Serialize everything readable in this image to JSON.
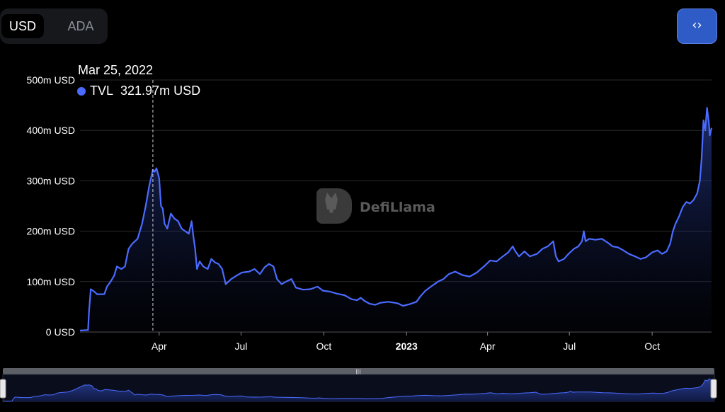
{
  "currency_toggle": {
    "options": [
      {
        "label": "USD",
        "active": true
      },
      {
        "label": "ADA",
        "active": false
      }
    ]
  },
  "embed_button": {
    "icon": "code-icon",
    "glyph": "‹›"
  },
  "watermark": {
    "text": "DefiLlama",
    "icon": "llama-logo-icon"
  },
  "tooltip": {
    "date": "Mar 25, 2022",
    "series": "TVL",
    "value": "321.97m USD",
    "color": "#4b6bff"
  },
  "colors": {
    "line": "#4b6bff",
    "grid": "#2a2a2a"
  },
  "chart_data": {
    "type": "area",
    "series": [
      {
        "name": "TVL"
      }
    ],
    "unit": "m USD",
    "ylim": [
      0,
      500
    ],
    "ytick_values": [
      0,
      100,
      200,
      300,
      400,
      500
    ],
    "yticks": [
      "0 USD",
      "100m USD",
      "200m USD",
      "300m USD",
      "400m USD",
      "500m USD"
    ],
    "xlim": [
      "2022-01-03",
      "2023-12-06"
    ],
    "xticks": [
      {
        "date": "2022-04-01",
        "label": "Apr",
        "bold": false
      },
      {
        "date": "2022-07-01",
        "label": "Jul",
        "bold": false
      },
      {
        "date": "2022-10-01",
        "label": "Oct",
        "bold": false
      },
      {
        "date": "2023-01-01",
        "label": "2023",
        "bold": true
      },
      {
        "date": "2023-04-01",
        "label": "Apr",
        "bold": false
      },
      {
        "date": "2023-07-01",
        "label": "Jul",
        "bold": false
      },
      {
        "date": "2023-10-01",
        "label": "Oct",
        "bold": false
      }
    ],
    "hover_date": "2022-03-25",
    "grid": true,
    "points": [
      [
        "2022-01-03",
        3
      ],
      [
        "2022-01-12",
        4
      ],
      [
        "2022-01-13",
        40
      ],
      [
        "2022-01-15",
        85
      ],
      [
        "2022-01-19",
        80
      ],
      [
        "2022-01-22",
        75
      ],
      [
        "2022-01-30",
        75
      ],
      [
        "2022-02-02",
        90
      ],
      [
        "2022-02-06",
        100
      ],
      [
        "2022-02-10",
        112
      ],
      [
        "2022-02-13",
        130
      ],
      [
        "2022-02-18",
        125
      ],
      [
        "2022-02-22",
        130
      ],
      [
        "2022-02-26",
        165
      ],
      [
        "2022-03-02",
        175
      ],
      [
        "2022-03-08",
        185
      ],
      [
        "2022-03-13",
        215
      ],
      [
        "2022-03-17",
        250
      ],
      [
        "2022-03-21",
        290
      ],
      [
        "2022-03-25",
        322
      ],
      [
        "2022-03-27",
        318
      ],
      [
        "2022-03-29",
        325
      ],
      [
        "2022-04-01",
        305
      ],
      [
        "2022-04-03",
        250
      ],
      [
        "2022-04-05",
        245
      ],
      [
        "2022-04-07",
        215
      ],
      [
        "2022-04-10",
        205
      ],
      [
        "2022-04-14",
        235
      ],
      [
        "2022-04-18",
        225
      ],
      [
        "2022-04-22",
        220
      ],
      [
        "2022-04-26",
        205
      ],
      [
        "2022-04-30",
        200
      ],
      [
        "2022-05-04",
        195
      ],
      [
        "2022-05-07",
        220
      ],
      [
        "2022-05-09",
        190
      ],
      [
        "2022-05-11",
        165
      ],
      [
        "2022-05-13",
        125
      ],
      [
        "2022-05-16",
        140
      ],
      [
        "2022-05-20",
        130
      ],
      [
        "2022-05-25",
        125
      ],
      [
        "2022-05-29",
        145
      ],
      [
        "2022-06-02",
        138
      ],
      [
        "2022-06-06",
        135
      ],
      [
        "2022-06-10",
        125
      ],
      [
        "2022-06-14",
        95
      ],
      [
        "2022-06-20",
        105
      ],
      [
        "2022-06-26",
        112
      ],
      [
        "2022-07-02",
        118
      ],
      [
        "2022-07-10",
        120
      ],
      [
        "2022-07-16",
        125
      ],
      [
        "2022-07-22",
        115
      ],
      [
        "2022-07-27",
        128
      ],
      [
        "2022-08-01",
        135
      ],
      [
        "2022-08-06",
        130
      ],
      [
        "2022-08-10",
        105
      ],
      [
        "2022-08-15",
        95
      ],
      [
        "2022-08-20",
        100
      ],
      [
        "2022-08-26",
        105
      ],
      [
        "2022-08-31",
        88
      ],
      [
        "2022-09-08",
        84
      ],
      [
        "2022-09-16",
        85
      ],
      [
        "2022-09-24",
        90
      ],
      [
        "2022-09-30",
        82
      ],
      [
        "2022-10-08",
        80
      ],
      [
        "2022-10-16",
        76
      ],
      [
        "2022-10-24",
        73
      ],
      [
        "2022-11-01",
        65
      ],
      [
        "2022-11-07",
        63
      ],
      [
        "2022-11-11",
        68
      ],
      [
        "2022-11-15",
        62
      ],
      [
        "2022-11-21",
        56
      ],
      [
        "2022-11-27",
        54
      ],
      [
        "2022-12-03",
        58
      ],
      [
        "2022-12-12",
        60
      ],
      [
        "2022-12-22",
        57
      ],
      [
        "2022-12-28",
        52
      ],
      [
        "2023-01-04",
        55
      ],
      [
        "2023-01-12",
        60
      ],
      [
        "2023-01-16",
        70
      ],
      [
        "2023-01-22",
        82
      ],
      [
        "2023-01-28",
        90
      ],
      [
        "2023-02-05",
        100
      ],
      [
        "2023-02-11",
        105
      ],
      [
        "2023-02-17",
        115
      ],
      [
        "2023-02-24",
        120
      ],
      [
        "2023-03-04",
        113
      ],
      [
        "2023-03-12",
        110
      ],
      [
        "2023-03-20",
        118
      ],
      [
        "2023-03-28",
        130
      ],
      [
        "2023-04-04",
        142
      ],
      [
        "2023-04-11",
        140
      ],
      [
        "2023-04-18",
        150
      ],
      [
        "2023-04-24",
        158
      ],
      [
        "2023-04-29",
        170
      ],
      [
        "2023-05-02",
        160
      ],
      [
        "2023-05-06",
        150
      ],
      [
        "2023-05-12",
        160
      ],
      [
        "2023-05-18",
        150
      ],
      [
        "2023-05-26",
        155
      ],
      [
        "2023-06-01",
        165
      ],
      [
        "2023-06-07",
        170
      ],
      [
        "2023-06-13",
        180
      ],
      [
        "2023-06-16",
        150
      ],
      [
        "2023-06-19",
        140
      ],
      [
        "2023-06-25",
        145
      ],
      [
        "2023-06-30",
        155
      ],
      [
        "2023-07-06",
        165
      ],
      [
        "2023-07-11",
        170
      ],
      [
        "2023-07-15",
        180
      ],
      [
        "2023-07-17",
        200
      ],
      [
        "2023-07-19",
        180
      ],
      [
        "2023-07-23",
        185
      ],
      [
        "2023-07-30",
        183
      ],
      [
        "2023-08-06",
        185
      ],
      [
        "2023-08-12",
        178
      ],
      [
        "2023-08-18",
        170
      ],
      [
        "2023-08-24",
        168
      ],
      [
        "2023-08-30",
        162
      ],
      [
        "2023-09-05",
        155
      ],
      [
        "2023-09-12",
        150
      ],
      [
        "2023-09-18",
        145
      ],
      [
        "2023-09-24",
        148
      ],
      [
        "2023-10-01",
        158
      ],
      [
        "2023-10-07",
        162
      ],
      [
        "2023-10-12",
        155
      ],
      [
        "2023-10-17",
        160
      ],
      [
        "2023-10-21",
        175
      ],
      [
        "2023-10-24",
        200
      ],
      [
        "2023-10-27",
        215
      ],
      [
        "2023-10-31",
        230
      ],
      [
        "2023-11-04",
        248
      ],
      [
        "2023-11-08",
        258
      ],
      [
        "2023-11-12",
        255
      ],
      [
        "2023-11-16",
        262
      ],
      [
        "2023-11-20",
        275
      ],
      [
        "2023-11-23",
        300
      ],
      [
        "2023-11-25",
        345
      ],
      [
        "2023-11-27",
        420
      ],
      [
        "2023-11-29",
        400
      ],
      [
        "2023-12-01",
        445
      ],
      [
        "2023-12-03",
        415
      ],
      [
        "2023-12-04",
        390
      ],
      [
        "2023-12-06",
        405
      ]
    ]
  },
  "range_slider": {
    "start": 0,
    "end": 1
  }
}
